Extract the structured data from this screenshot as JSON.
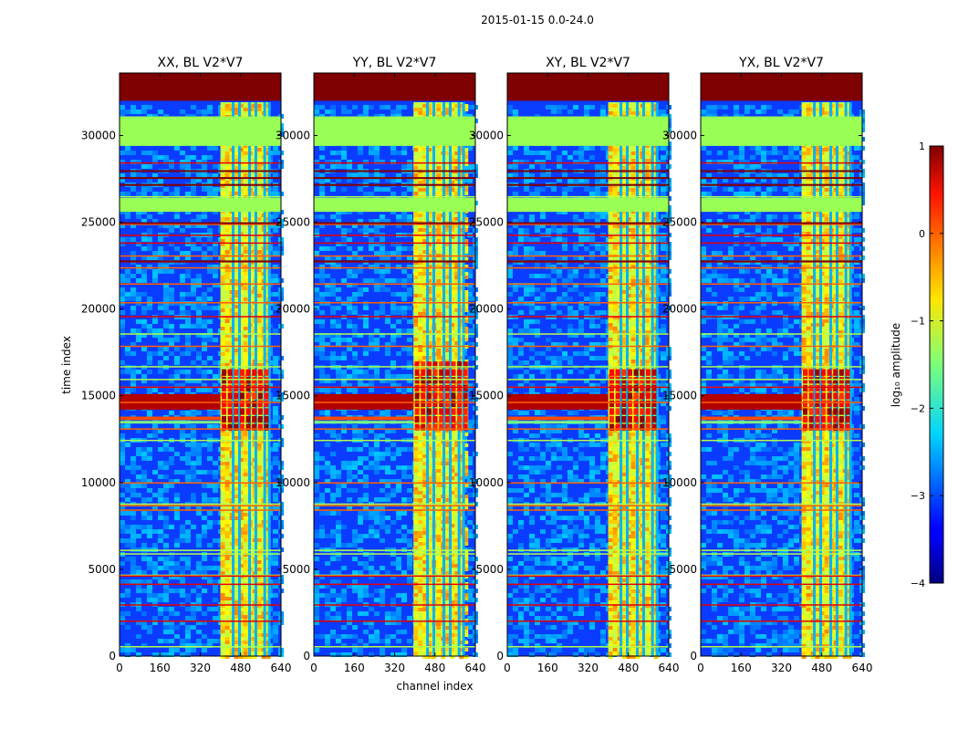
{
  "figure": {
    "suptitle": "2015-01-15 0.0-24.0"
  },
  "chart_data": [
    {
      "type": "heatmap",
      "title": "XX, BL V2*V7",
      "xlabel": "",
      "ylabel": "time index",
      "xlim": [
        0,
        640
      ],
      "ylim": [
        0,
        33600
      ],
      "xticks": [
        0,
        160,
        320,
        480,
        640
      ],
      "yticks": [
        0,
        5000,
        10000,
        15000,
        20000,
        25000,
        30000
      ],
      "band_start_channel": 400,
      "burst_time_range": [
        13000,
        16500
      ]
    },
    {
      "type": "heatmap",
      "title": "YY, BL V2*V7",
      "xlabel": "channel index",
      "ylabel": "",
      "xlim": [
        0,
        640
      ],
      "ylim": [
        0,
        33600
      ],
      "xticks": [
        0,
        160,
        320,
        480,
        640
      ],
      "yticks": [
        0,
        5000,
        10000,
        15000,
        20000,
        25000,
        30000
      ],
      "band_start_channel": 395,
      "burst_time_range": [
        13000,
        17000
      ]
    },
    {
      "type": "heatmap",
      "title": "XY, BL V2*V7",
      "xlabel": "",
      "ylabel": "",
      "xlim": [
        0,
        640
      ],
      "ylim": [
        0,
        33600
      ],
      "xticks": [
        0,
        160,
        320,
        480,
        640
      ],
      "yticks": [
        0,
        5000,
        10000,
        15000,
        20000,
        25000,
        30000
      ],
      "band_start_channel": 400,
      "burst_time_range": [
        13000,
        16500
      ]
    },
    {
      "type": "heatmap",
      "title": "YX, BL V2*V7",
      "xlabel": "",
      "ylabel": "",
      "xlim": [
        0,
        640
      ],
      "ylim": [
        0,
        33600
      ],
      "xticks": [
        0,
        160,
        320,
        480,
        640
      ],
      "yticks": [
        0,
        5000,
        10000,
        15000,
        20000,
        25000,
        30000
      ],
      "band_start_channel": 400,
      "burst_time_range": [
        13000,
        16500
      ]
    }
  ],
  "colorbar": {
    "label": "log₁₀ amplitude",
    "colormap": "jet",
    "range": [
      -4,
      1
    ],
    "ticks": [
      1,
      0,
      -1,
      -2,
      -3,
      -4
    ],
    "tick_labels": [
      "1",
      "0",
      "−1",
      "−2",
      "−3",
      "−4"
    ]
  },
  "colors": {
    "background": "#ffffff",
    "axis": "#000000",
    "saturated": "#7f0000",
    "flagged_green": "#99ff55",
    "noise_blue": "#0a3cff"
  }
}
